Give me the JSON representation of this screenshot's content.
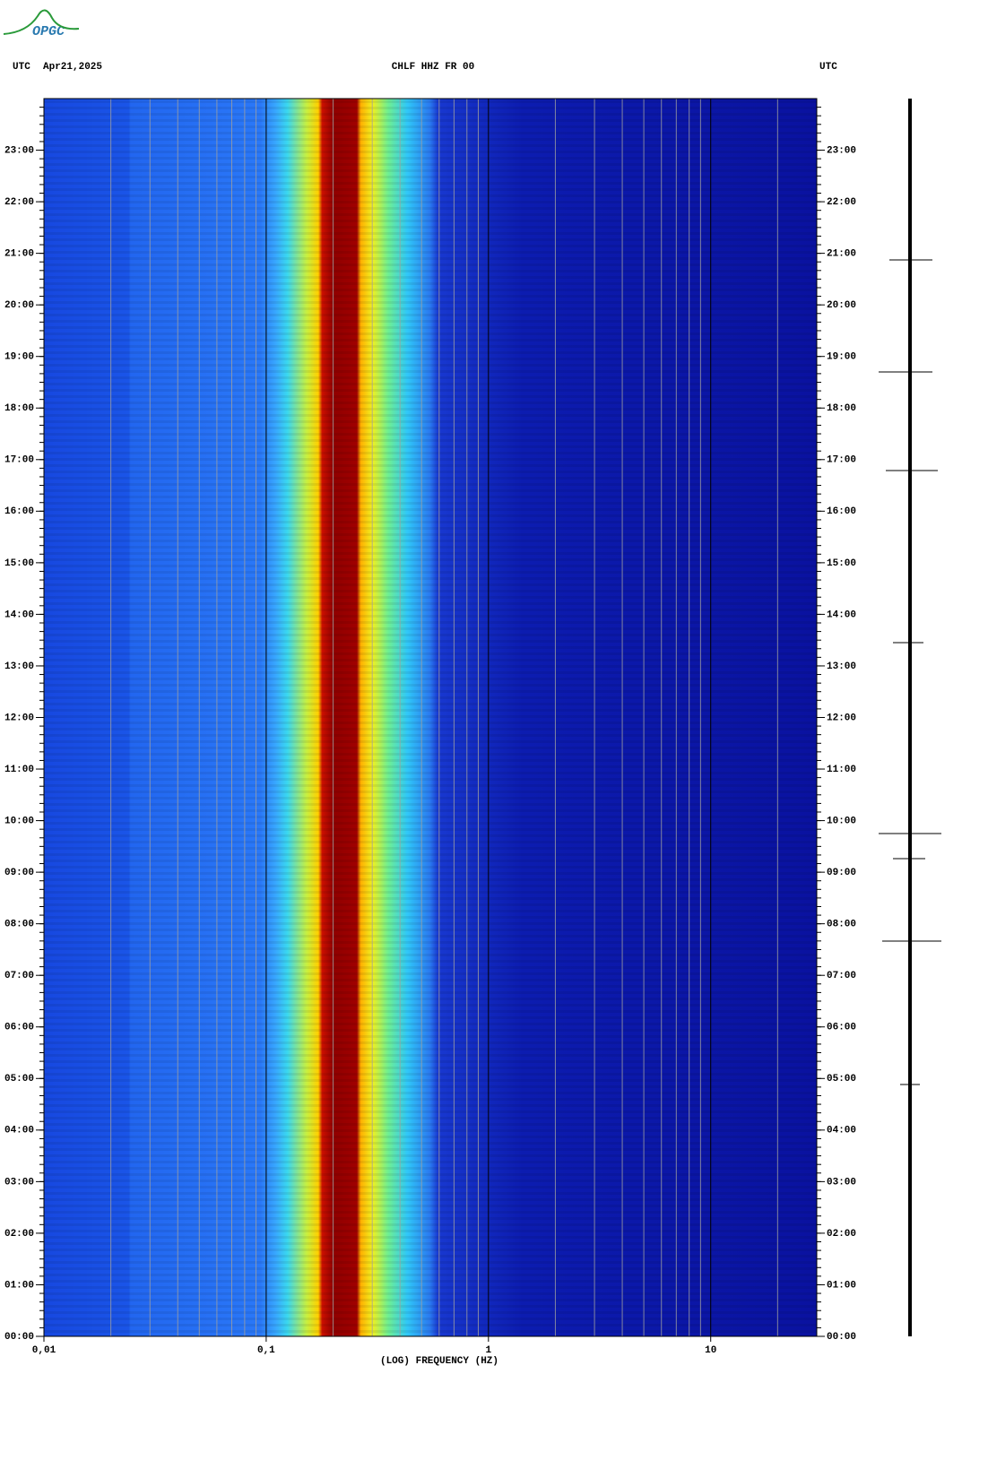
{
  "logo": "OPGC",
  "chart_data": {
    "type": "spectrogram",
    "title": "CHLF HHZ FR 00",
    "timezone_left": "UTC",
    "date": "Apr21,2025",
    "timezone_right": "UTC",
    "x_label": "(LOG) FREQUENCY (HZ)",
    "xscale": "log",
    "xlim": [
      0.01,
      30
    ],
    "xticks": [
      {
        "value": 0.01,
        "label": "0,01"
      },
      {
        "value": 0.1,
        "label": "0,1"
      },
      1,
      10
    ],
    "ylim": [
      0,
      24
    ],
    "yticks": [
      {
        "value": 0,
        "label": "00:00"
      },
      {
        "value": 1,
        "label": "01:00"
      },
      {
        "value": 2,
        "label": "02:00"
      },
      {
        "value": 3,
        "label": "03:00"
      },
      {
        "value": 4,
        "label": "04:00"
      },
      {
        "value": 5,
        "label": "05:00"
      },
      {
        "value": 6,
        "label": "06:00"
      },
      {
        "value": 7,
        "label": "07:00"
      },
      {
        "value": 8,
        "label": "08:00"
      },
      {
        "value": 9,
        "label": "09:00"
      },
      {
        "value": 10,
        "label": "10:00"
      },
      {
        "value": 11,
        "label": "11:00"
      },
      {
        "value": 12,
        "label": "12:00"
      },
      {
        "value": 13,
        "label": "13:00"
      },
      {
        "value": 14,
        "label": "14:00"
      },
      {
        "value": 15,
        "label": "15:00"
      },
      {
        "value": 16,
        "label": "16:00"
      },
      {
        "value": 17,
        "label": "17:00"
      },
      {
        "value": 18,
        "label": "18:00"
      },
      {
        "value": 19,
        "label": "19:00"
      },
      {
        "value": 20,
        "label": "20:00"
      },
      {
        "value": 21,
        "label": "21:00"
      },
      {
        "value": 22,
        "label": "22:00"
      },
      {
        "value": 23,
        "label": "23:00"
      }
    ]
  }
}
